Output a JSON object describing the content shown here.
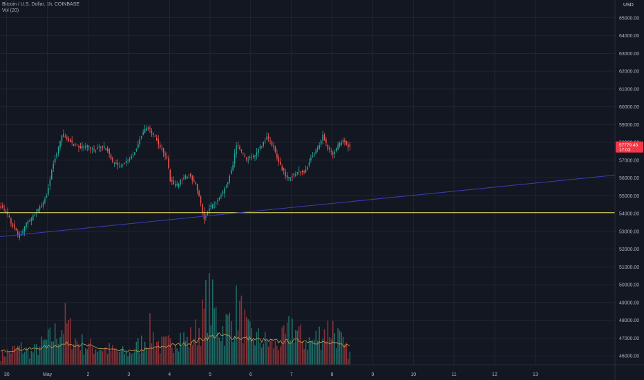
{
  "header": {
    "title": "Bitcoin / U.S. Dollar, 1h, COINBASE",
    "indicator": "Vol (20)",
    "currency": "USD"
  },
  "price_tag": {
    "price": "57779.43",
    "countdown": "17:03",
    "color": "#f23645"
  },
  "colors": {
    "background": "#131722",
    "grid": "#2a2e39",
    "up": "#26a69a",
    "down": "#ef5350",
    "vol_up": "#1e6f68",
    "vol_down": "#8a3337",
    "vol_ma": "#d59a4a",
    "support_line": "#f2e86a",
    "trend_line": "#3a3fb8"
  },
  "chart_data": {
    "type": "candlestick",
    "symbol": "Bitcoin / U.S. Dollar",
    "interval": "1h",
    "exchange": "COINBASE",
    "y_axis": {
      "ylim": [
        45500,
        66000
      ],
      "ticks": [
        "46000.00",
        "47000.00",
        "48000.00",
        "49000.00",
        "50000.00",
        "51000.00",
        "52000.00",
        "53000.00",
        "54000.00",
        "55000.00",
        "56000.00",
        "57000.00",
        "58000.00",
        "59000.00",
        "60000.00",
        "61000.00",
        "62000.00",
        "63000.00",
        "64000.00",
        "65000.00"
      ]
    },
    "x_axis": {
      "hours_range": [
        -14,
        349
      ],
      "ticks": [
        {
          "label": "30",
          "hour": -10
        },
        {
          "label": "May",
          "hour": 14
        },
        {
          "label": "2",
          "hour": 38
        },
        {
          "label": "3",
          "hour": 62
        },
        {
          "label": "4",
          "hour": 86
        },
        {
          "label": "5",
          "hour": 110
        },
        {
          "label": "6",
          "hour": 134
        },
        {
          "label": "7",
          "hour": 158
        },
        {
          "label": "8",
          "hour": 182
        },
        {
          "label": "9",
          "hour": 206
        },
        {
          "label": "10",
          "hour": 230
        },
        {
          "label": "11",
          "hour": 254
        },
        {
          "label": "12",
          "hour": 278
        },
        {
          "label": "13",
          "hour": 302
        }
      ]
    },
    "price_keyframes": [
      [
        -14,
        54500
      ],
      [
        -10,
        54100
      ],
      [
        -6,
        53300
      ],
      [
        -2,
        52700
      ],
      [
        2,
        53400
      ],
      [
        6,
        53800
      ],
      [
        10,
        54300
      ],
      [
        14,
        55000
      ],
      [
        17,
        56500
      ],
      [
        20,
        57400
      ],
      [
        23,
        58400
      ],
      [
        26,
        58200
      ],
      [
        30,
        57900
      ],
      [
        34,
        57700
      ],
      [
        38,
        57800
      ],
      [
        42,
        57500
      ],
      [
        46,
        57800
      ],
      [
        50,
        57600
      ],
      [
        53,
        56900
      ],
      [
        56,
        56700
      ],
      [
        60,
        56800
      ],
      [
        64,
        57200
      ],
      [
        67,
        57700
      ],
      [
        70,
        58400
      ],
      [
        73,
        58800
      ],
      [
        76,
        58600
      ],
      [
        79,
        58100
      ],
      [
        82,
        57600
      ],
      [
        85,
        57100
      ],
      [
        87,
        55900
      ],
      [
        90,
        55500
      ],
      [
        94,
        55900
      ],
      [
        98,
        56200
      ],
      [
        102,
        55600
      ],
      [
        105,
        54600
      ],
      [
        107,
        53700
      ],
      [
        110,
        54300
      ],
      [
        114,
        54600
      ],
      [
        118,
        55200
      ],
      [
        121,
        55800
      ],
      [
        124,
        56800
      ],
      [
        126,
        57900
      ],
      [
        129,
        57500
      ],
      [
        132,
        57000
      ],
      [
        136,
        57200
      ],
      [
        140,
        57700
      ],
      [
        144,
        58300
      ],
      [
        148,
        57700
      ],
      [
        152,
        56700
      ],
      [
        156,
        56000
      ],
      [
        159,
        56100
      ],
      [
        162,
        56400
      ],
      [
        166,
        56300
      ],
      [
        170,
        57100
      ],
      [
        174,
        57700
      ],
      [
        177,
        58400
      ],
      [
        180,
        57700
      ],
      [
        183,
        57300
      ],
      [
        186,
        57800
      ],
      [
        189,
        58200
      ],
      [
        192,
        57800
      ]
    ],
    "volume_axis": {
      "vlim": [
        0,
        1400
      ]
    },
    "volume_keyframes": [
      [
        -14,
        140
      ],
      [
        -8,
        220
      ],
      [
        -2,
        260
      ],
      [
        4,
        180
      ],
      [
        10,
        300
      ],
      [
        16,
        420
      ],
      [
        20,
        520
      ],
      [
        24,
        650
      ],
      [
        30,
        380
      ],
      [
        38,
        280
      ],
      [
        46,
        260
      ],
      [
        54,
        210
      ],
      [
        62,
        180
      ],
      [
        70,
        360
      ],
      [
        74,
        520
      ],
      [
        80,
        300
      ],
      [
        86,
        320
      ],
      [
        90,
        480
      ],
      [
        96,
        360
      ],
      [
        102,
        520
      ],
      [
        106,
        760
      ],
      [
        108,
        1050
      ],
      [
        112,
        820
      ],
      [
        116,
        540
      ],
      [
        122,
        680
      ],
      [
        126,
        900
      ],
      [
        132,
        460
      ],
      [
        140,
        380
      ],
      [
        148,
        300
      ],
      [
        154,
        420
      ],
      [
        158,
        620
      ],
      [
        164,
        380
      ],
      [
        170,
        360
      ],
      [
        176,
        520
      ],
      [
        182,
        580
      ],
      [
        188,
        300
      ],
      [
        192,
        160
      ]
    ],
    "vol_ma20_keyframes": [
      [
        -14,
        210
      ],
      [
        -4,
        240
      ],
      [
        6,
        250
      ],
      [
        16,
        290
      ],
      [
        26,
        330
      ],
      [
        36,
        300
      ],
      [
        46,
        250
      ],
      [
        56,
        220
      ],
      [
        66,
        210
      ],
      [
        76,
        260
      ],
      [
        86,
        300
      ],
      [
        96,
        330
      ],
      [
        106,
        410
      ],
      [
        114,
        460
      ],
      [
        124,
        430
      ],
      [
        134,
        400
      ],
      [
        144,
        370
      ],
      [
        154,
        360
      ],
      [
        164,
        380
      ],
      [
        174,
        350
      ],
      [
        184,
        320
      ],
      [
        192,
        300
      ]
    ],
    "annotations": [
      {
        "type": "horizontal_line",
        "price": 54050,
        "color": "#f2e86a"
      },
      {
        "type": "trend_line",
        "from": {
          "hour": -14,
          "price": 52700
        },
        "to": {
          "hour": 349,
          "price": 56160
        },
        "color": "#3a3fb8"
      }
    ]
  }
}
